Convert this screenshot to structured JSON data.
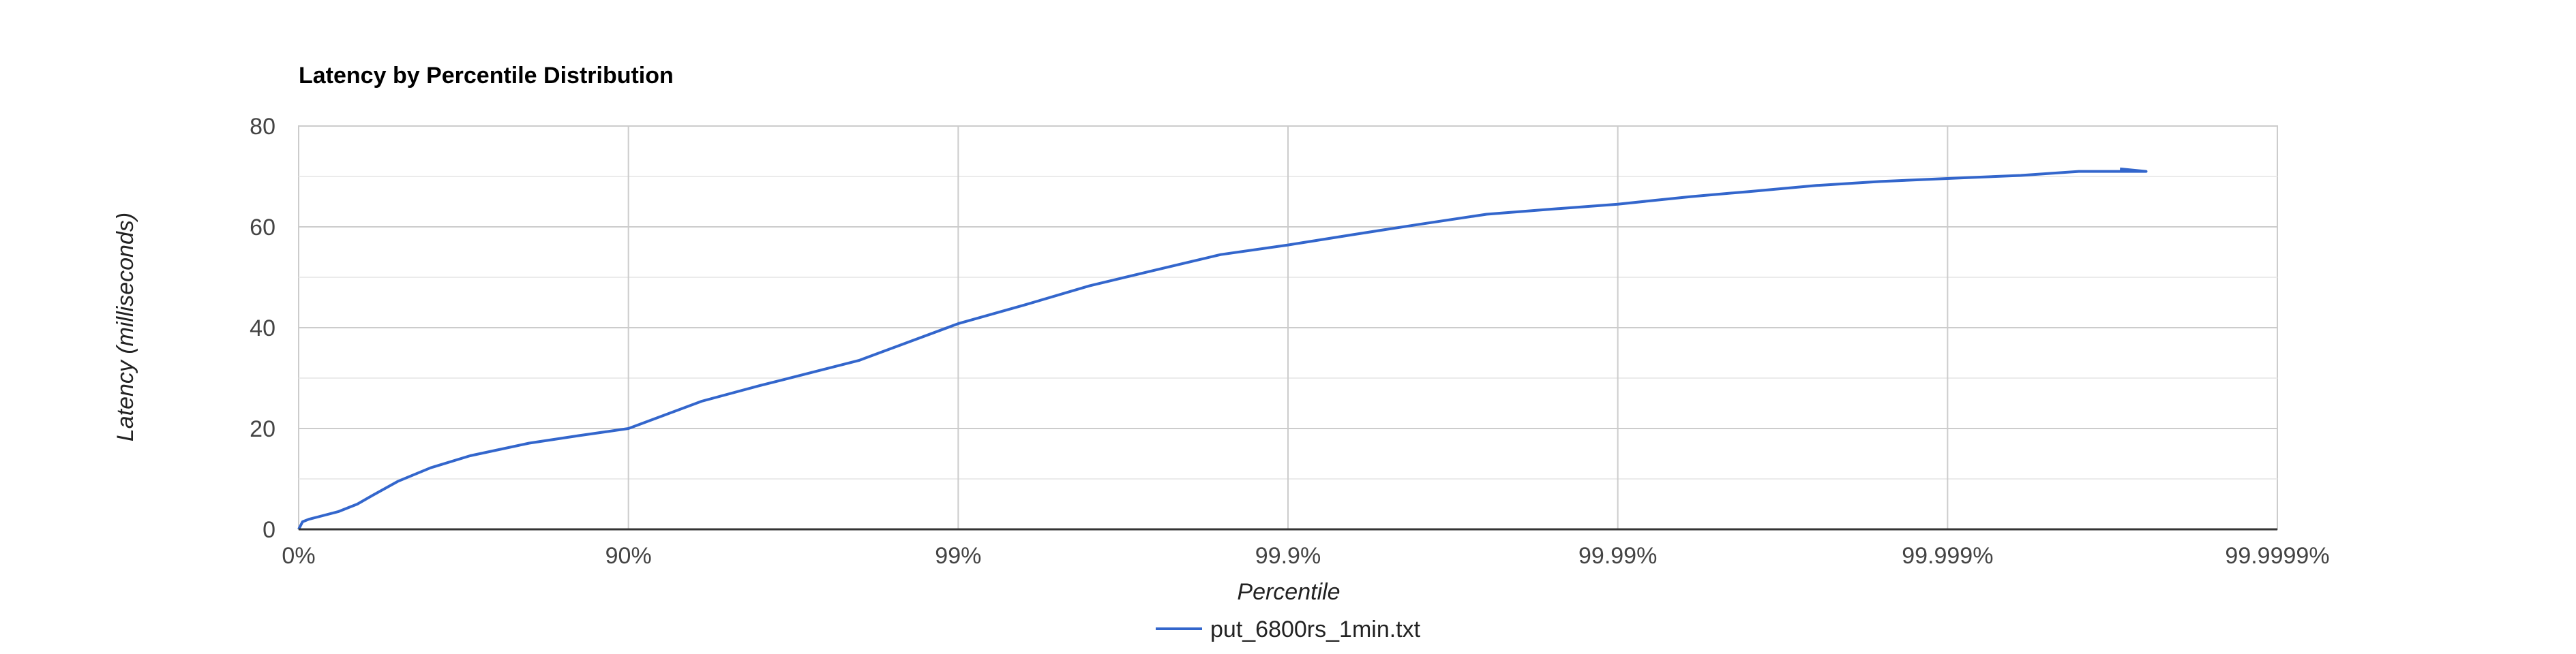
{
  "chart_data": {
    "type": "line",
    "title": "Latency by Percentile Distribution",
    "xlabel": "Percentile",
    "ylabel": "Latency (milliseconds)",
    "x_scale": "log-inverse-percentile",
    "x_ticks": [
      "0%",
      "90%",
      "99%",
      "99.9%",
      "99.99%",
      "99.999%",
      "99.9999%"
    ],
    "y_ticks": [
      "0",
      "20",
      "40",
      "60",
      "80"
    ],
    "ylim": [
      0,
      80
    ],
    "grid": true,
    "legend": "bottom",
    "series": [
      {
        "name": "put_6800rs_1min.txt",
        "color": "#3366cc",
        "x": [
          "0%",
          "2.7%",
          "6.9%",
          "13.0%",
          "24.1%",
          "33.6%",
          "40.2%",
          "49.9%",
          "60.2%",
          "69.8%",
          "80.0%",
          "85.9%",
          "90.0%",
          "94.0%",
          "96.0%",
          "98.0%",
          "99.0%",
          "99.37%",
          "99.6%",
          "99.75%",
          "99.84%",
          "99.9%",
          "99.937%",
          "99.96%",
          "99.975%",
          "99.984%",
          "99.99%",
          "99.994%",
          "99.996%",
          "99.9975%",
          "99.9984%",
          "99.999%",
          "99.9994%",
          "99.9996%",
          "99.99975%",
          "99.9997%"
        ],
        "values": [
          0,
          1.5,
          2.0,
          2.5,
          3.5,
          5.0,
          6.7,
          9.5,
          12.2,
          14.6,
          17.1,
          18.6,
          20.0,
          25.4,
          28.5,
          33.5,
          40.8,
          44.5,
          48.3,
          51.5,
          54.5,
          56.4,
          58.5,
          60.5,
          62.5,
          63.5,
          64.5,
          66.0,
          67.0,
          68.2,
          69.0,
          69.6,
          70.2,
          71.0,
          71.0,
          71.5
        ]
      }
    ]
  }
}
